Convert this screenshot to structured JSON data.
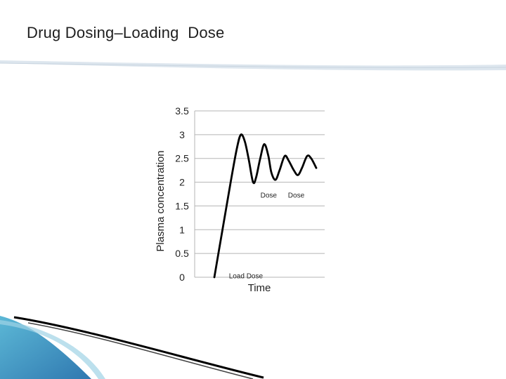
{
  "slide": {
    "title": "Drug Dosing–Loading  Dose"
  },
  "colors": {
    "curve": "#000000",
    "grid": "#b5b5b5",
    "swoosh_light": "#dde6ee",
    "corner_blue": "#3f8fc3",
    "corner_teal": "#5cb8d6"
  },
  "chart_data": {
    "type": "line",
    "xlabel": "Time",
    "ylabel": "Plasma concentration",
    "ylim": [
      0,
      3.5
    ],
    "y_ticks": [
      "0",
      "0.5",
      "1",
      "1.5",
      "2",
      "2.5",
      "3",
      "3.5"
    ],
    "y_tick_values": [
      0,
      0.5,
      1,
      1.5,
      2,
      2.5,
      3,
      3.5
    ],
    "grid": true,
    "legend": "none",
    "series": [
      {
        "x": [
          0.0,
          0.08,
          0.16,
          0.22,
          0.26,
          0.3,
          0.34,
          0.38,
          0.41,
          0.45,
          0.49,
          0.53,
          0.56,
          0.6,
          0.64,
          0.69,
          0.73,
          0.78,
          0.82,
          0.86,
          0.91,
          0.95,
          1.0
        ],
        "y": [
          0.0,
          1.0,
          2.0,
          2.7,
          3.0,
          2.85,
          2.45,
          2.0,
          2.1,
          2.5,
          2.8,
          2.55,
          2.2,
          2.05,
          2.25,
          2.55,
          2.45,
          2.25,
          2.15,
          2.3,
          2.55,
          2.5,
          2.3
        ]
      }
    ],
    "annotations": [
      {
        "text": "Load Dose",
        "x": 0.06,
        "y": 0.05
      },
      {
        "text": "Dose",
        "x": 0.37,
        "y": 1.75
      },
      {
        "text": "Dose",
        "x": 0.64,
        "y": 1.75
      }
    ]
  }
}
